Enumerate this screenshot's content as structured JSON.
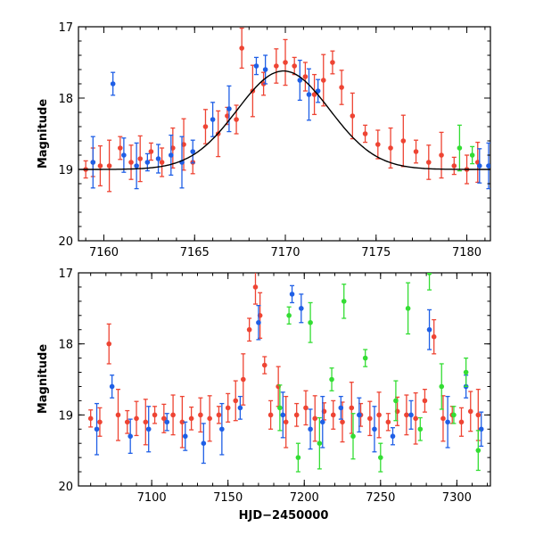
{
  "colors": {
    "red": "#ee4433",
    "blue": "#1f5fe6",
    "green": "#33dd33",
    "black": "#000000"
  },
  "chart_data": [
    {
      "id": "top",
      "type": "scatter",
      "title": "",
      "xlabel": "",
      "ylabel": "Magnitude",
      "xlim": [
        7158.6,
        7181.3
      ],
      "ylim": [
        20,
        17
      ],
      "y_inverted": true,
      "xticks": [
        7160,
        7165,
        7170,
        7175,
        7180
      ],
      "xtick_labels": [
        "7160",
        "7165",
        "7170",
        "7175",
        "7180"
      ],
      "yticks": [
        17,
        18,
        19,
        20
      ],
      "ytick_labels": [
        "17",
        "18",
        "19",
        "20"
      ],
      "model_curve": {
        "name": "model",
        "peak_x": 7169.9,
        "peak_mag": 17.62,
        "base_mag": 19.0,
        "width_days": 3.6
      },
      "series": [
        {
          "name": "red",
          "color": "red",
          "x": [
            7159.0,
            7159.4,
            7159.8,
            7160.3,
            7160.9,
            7161.5,
            7162.0,
            7162.6,
            7163.2,
            7163.8,
            7164.4,
            7164.9,
            7165.6,
            7166.3,
            7166.8,
            7167.3,
            7167.6,
            7168.2,
            7168.8,
            7169.5,
            7170.0,
            7170.5,
            7171.1,
            7171.6,
            7172.1,
            7172.6,
            7173.1,
            7173.7,
            7174.4,
            7175.1,
            7175.8,
            7176.5,
            7177.2,
            7177.9,
            7178.6,
            7179.3,
            7180.0,
            7180.6
          ],
          "y": [
            19.0,
            18.9,
            18.95,
            18.95,
            18.7,
            18.9,
            18.85,
            18.75,
            18.9,
            18.7,
            18.65,
            18.9,
            18.4,
            18.5,
            18.25,
            18.3,
            17.3,
            17.9,
            17.8,
            17.55,
            17.5,
            17.55,
            17.7,
            17.95,
            17.75,
            17.5,
            17.85,
            18.25,
            18.5,
            18.65,
            18.7,
            18.6,
            18.75,
            18.9,
            18.8,
            18.95,
            19.0,
            18.9
          ]
        },
        {
          "name": "blue",
          "color": "blue",
          "x": [
            7159.4,
            7160.5,
            7161.1,
            7161.8,
            7162.4,
            7163.0,
            7163.7,
            7164.3,
            7164.9,
            7166.0,
            7166.9,
            7168.4,
            7168.9,
            7170.8,
            7171.3,
            7171.8,
            7180.7,
            7181.2
          ],
          "y": [
            18.9,
            17.8,
            18.8,
            18.95,
            18.9,
            18.85,
            18.8,
            18.9,
            18.75,
            18.3,
            18.15,
            17.55,
            17.6,
            17.75,
            17.95,
            17.9,
            18.95,
            18.95
          ]
        },
        {
          "name": "green",
          "color": "green",
          "x": [
            7179.6,
            7180.3
          ],
          "y": [
            18.7,
            18.8
          ]
        }
      ]
    },
    {
      "id": "bottom",
      "type": "scatter",
      "title": "",
      "xlabel": "HJD−2450000",
      "ylabel": "Magnitude",
      "xlim": [
        7052,
        7322
      ],
      "ylim": [
        20,
        17
      ],
      "y_inverted": true,
      "xticks": [
        7100,
        7150,
        7200,
        7250,
        7300
      ],
      "xtick_labels": [
        "7100",
        "7150",
        "7200",
        "7250",
        "7300"
      ],
      "yticks": [
        17,
        18,
        19,
        20
      ],
      "ytick_labels": [
        "17",
        "18",
        "19",
        "20"
      ],
      "series": [
        {
          "name": "red",
          "color": "red",
          "x": [
            7060,
            7066,
            7072,
            7078,
            7084,
            7090,
            7096,
            7102,
            7108,
            7114,
            7120,
            7126,
            7132,
            7138,
            7144,
            7150,
            7155,
            7160,
            7164,
            7168,
            7171,
            7174,
            7178,
            7183,
            7188,
            7195,
            7201,
            7207,
            7213,
            7219,
            7225,
            7231,
            7237,
            7243,
            7249,
            7255,
            7261,
            7267,
            7273,
            7279,
            7285,
            7291,
            7297,
            7303,
            7309,
            7314
          ],
          "y": [
            19.05,
            19.1,
            18.0,
            19.0,
            19.1,
            19.05,
            19.1,
            19.0,
            19.05,
            19.0,
            19.1,
            19.05,
            19.0,
            19.05,
            19.0,
            18.9,
            18.8,
            18.5,
            17.8,
            17.2,
            17.6,
            18.3,
            19.0,
            18.6,
            19.1,
            19.0,
            18.9,
            19.05,
            18.95,
            19.0,
            19.1,
            18.9,
            19.0,
            19.05,
            19.0,
            19.1,
            18.95,
            19.0,
            19.05,
            18.8,
            17.9,
            19.05,
            19.0,
            19.1,
            18.95,
            19.0
          ]
        },
        {
          "name": "blue",
          "color": "blue",
          "x": [
            7064,
            7074,
            7086,
            7098,
            7110,
            7122,
            7134,
            7146,
            7158,
            7170,
            7186,
            7192,
            7198,
            7204,
            7212,
            7224,
            7236,
            7246,
            7258,
            7270,
            7282,
            7294,
            7306,
            7316
          ],
          "y": [
            19.2,
            18.6,
            19.3,
            19.2,
            19.1,
            19.3,
            19.4,
            19.2,
            18.9,
            17.7,
            19.0,
            17.3,
            17.5,
            19.2,
            19.1,
            18.9,
            19.0,
            19.2,
            19.3,
            19.0,
            17.8,
            19.1,
            18.6,
            19.2
          ]
        },
        {
          "name": "green",
          "color": "green",
          "x": [
            7184,
            7190,
            7196,
            7204,
            7210,
            7218,
            7226,
            7232,
            7240,
            7250,
            7260,
            7268,
            7276,
            7282,
            7290,
            7298,
            7306,
            7314
          ],
          "y": [
            18.9,
            17.6,
            19.6,
            17.7,
            19.4,
            18.5,
            17.4,
            19.3,
            18.2,
            19.6,
            18.8,
            17.5,
            19.2,
            17.0,
            18.6,
            19.0,
            18.4,
            19.5
          ]
        }
      ]
    }
  ]
}
